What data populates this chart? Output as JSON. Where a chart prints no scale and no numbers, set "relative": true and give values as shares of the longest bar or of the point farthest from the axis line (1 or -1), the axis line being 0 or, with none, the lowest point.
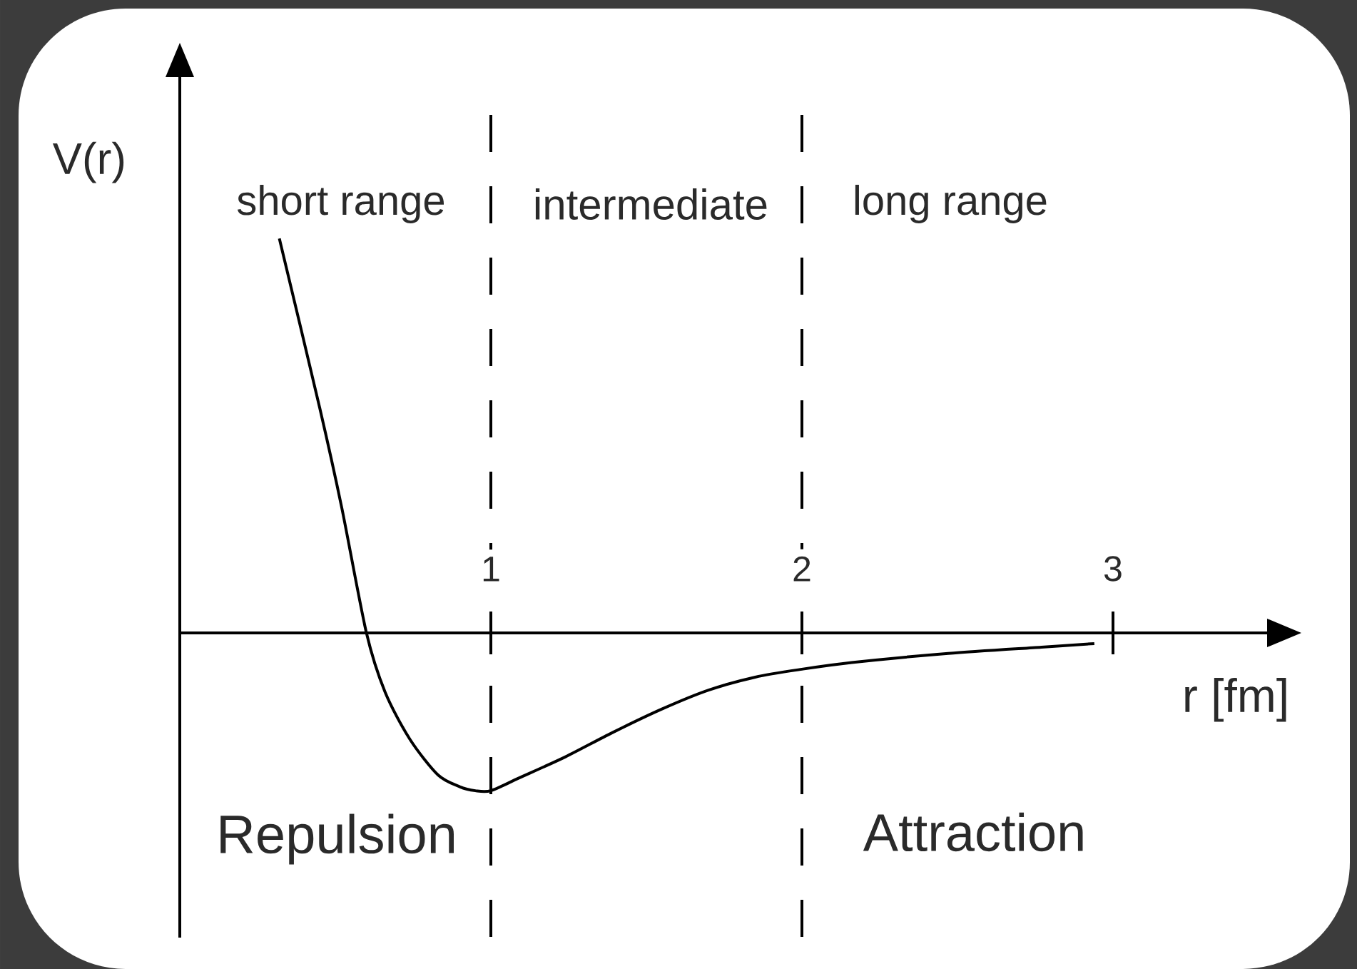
{
  "chart_data": {
    "type": "line",
    "xlabel": "r [fm]",
    "ylabel": "V(r)",
    "relative": true,
    "color": "#000000",
    "x": [
      0.32,
      0.45,
      0.52,
      0.6,
      0.66,
      0.74,
      0.83,
      0.9,
      0.95,
      1.0,
      1.09,
      1.24,
      1.39,
      1.55,
      1.7,
      1.85,
      2.0,
      2.16,
      2.47,
      2.77,
      2.94
    ],
    "values": [
      1,
      0.57,
      0.32,
      0,
      -0.15,
      -0.27,
      -0.36,
      -0.39,
      -0.4,
      -0.4,
      -0.368,
      -0.314,
      -0.253,
      -0.193,
      -0.145,
      -0.112,
      -0.092,
      -0.075,
      -0.052,
      -0.036,
      -0.027
    ],
    "xlim": [
      0,
      3.5
    ],
    "xticks": [
      1,
      2,
      3
    ],
    "ref_lines": [
      {
        "axis": "x",
        "value": 1,
        "color": "#000000",
        "line_style": "dashed"
      },
      {
        "axis": "x",
        "value": 2,
        "color": "#000000",
        "line_style": "dashed"
      }
    ],
    "annotations": [
      "short range",
      "intermediate",
      "long range",
      "Repulsion",
      "Attraction"
    ]
  }
}
